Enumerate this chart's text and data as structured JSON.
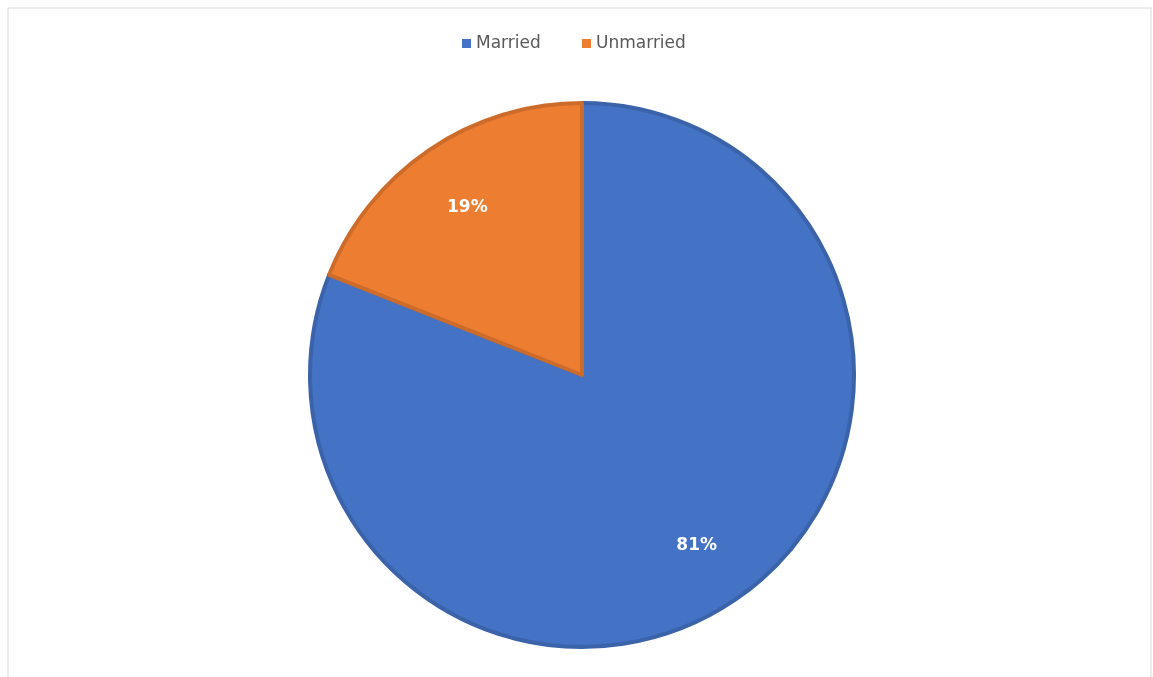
{
  "chart_data": {
    "type": "pie",
    "categories": [
      "Married",
      "Unmarried"
    ],
    "values": [
      81,
      19
    ],
    "colors": [
      "#4472c4",
      "#ed7d31"
    ],
    "value_labels": [
      "81%",
      "19%"
    ],
    "legend": "top"
  }
}
